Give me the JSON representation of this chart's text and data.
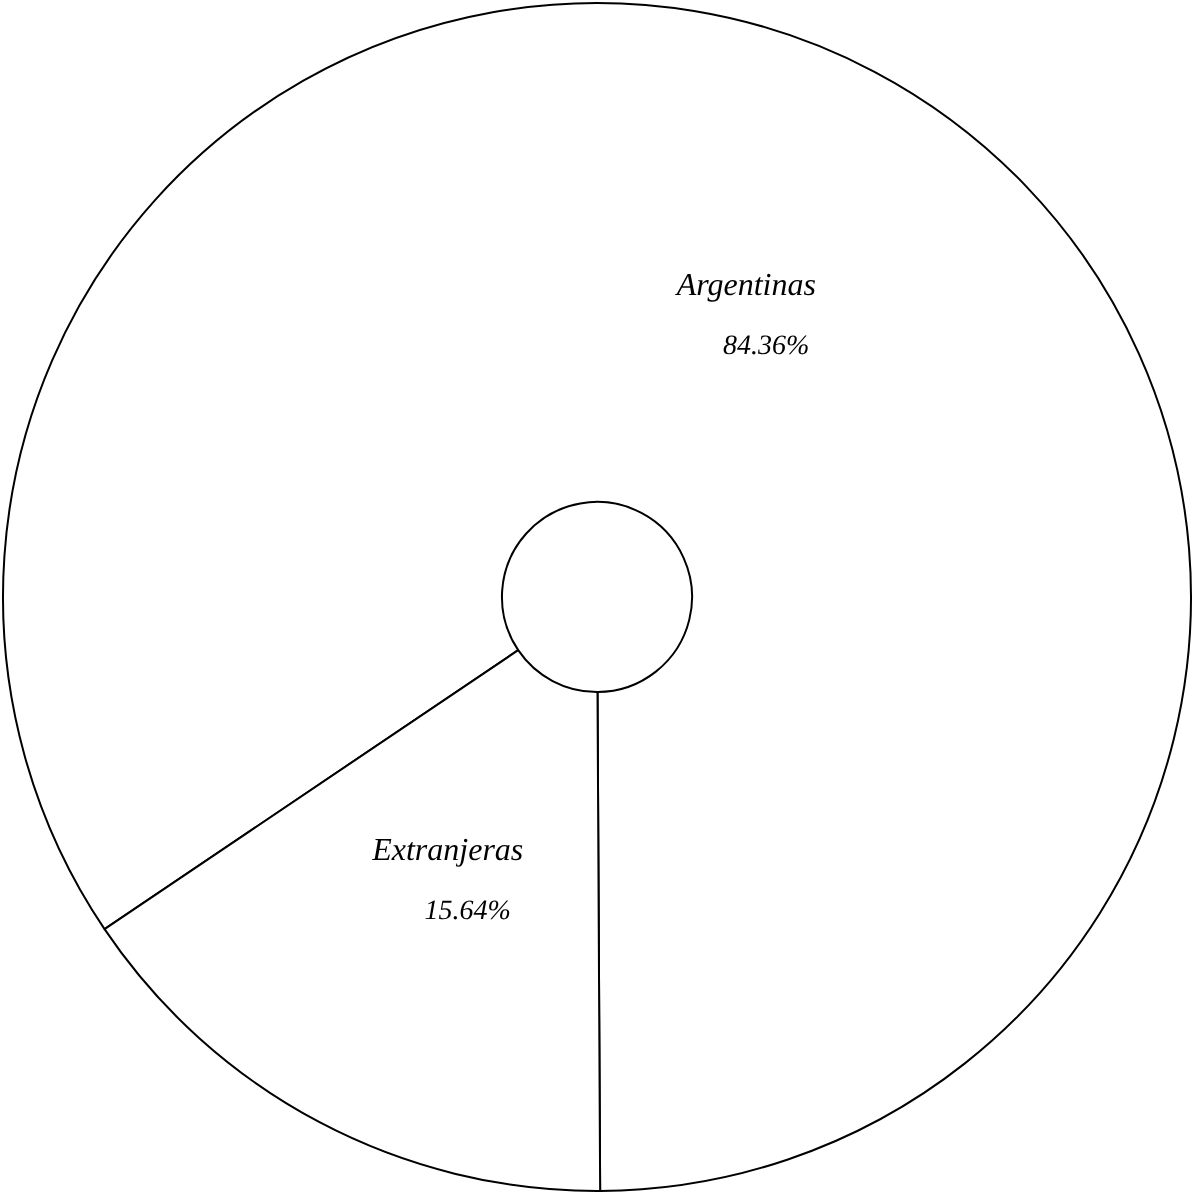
{
  "chart_data": {
    "type": "donut",
    "categories": [
      "Argentinas",
      "Extranjeras"
    ],
    "values": [
      84.36,
      15.64
    ],
    "colors": [
      "#ffffff",
      "#ffffff"
    ],
    "value_labels": [
      "84.36%",
      "15.64%"
    ],
    "legend": false
  }
}
